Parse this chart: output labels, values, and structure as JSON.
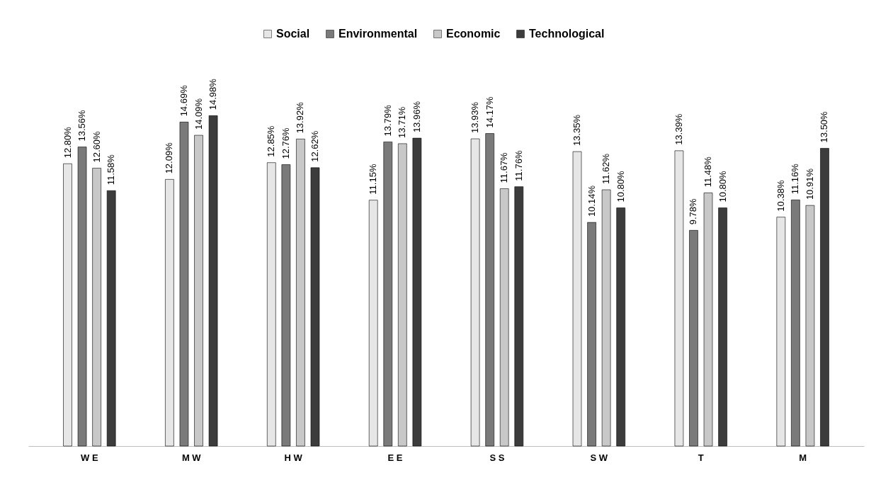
{
  "chart_data": {
    "type": "bar",
    "categories": [
      "W E",
      "M W",
      "H W",
      "E E",
      "S S",
      "S W",
      "T",
      "M"
    ],
    "series": [
      {
        "name": "Social",
        "color": "#e6e6e6",
        "values": [
          12.8,
          12.09,
          12.85,
          11.15,
          13.93,
          13.35,
          13.39,
          10.38
        ],
        "value_labels": [
          "12.80%",
          "12.09%",
          "12.85%",
          "11.15%",
          "13.93%",
          "13.35%",
          "13.39%",
          "10.38%"
        ]
      },
      {
        "name": "Environmental",
        "color": "#7a7a7a",
        "values": [
          13.56,
          14.69,
          12.76,
          13.79,
          14.17,
          10.14,
          9.78,
          11.16
        ],
        "value_labels": [
          "13.56%",
          "14.69%",
          "12.76%",
          "13.79%",
          "14.17%",
          "10.14%",
          "9.78%",
          "11.16%"
        ]
      },
      {
        "name": "Economic",
        "color": "#c8c8c8",
        "values": [
          12.6,
          14.09,
          13.92,
          13.71,
          11.67,
          11.62,
          11.48,
          10.91
        ],
        "value_labels": [
          "12.60%",
          "14.09%",
          "13.92%",
          "13.71%",
          "11.67%",
          "11.62%",
          "11.48%",
          "10.91%"
        ]
      },
      {
        "name": "Technological",
        "color": "#3c3c3c",
        "values": [
          11.58,
          14.98,
          12.62,
          13.96,
          11.76,
          10.8,
          10.8,
          13.5
        ],
        "value_labels": [
          "11.58%",
          "14.98%",
          "12.62%",
          "13.96%",
          "11.76%",
          "10.80%",
          "10.80%",
          "13.50%"
        ]
      }
    ],
    "legend": "top",
    "grid": false,
    "tick_labels": "x"
  }
}
